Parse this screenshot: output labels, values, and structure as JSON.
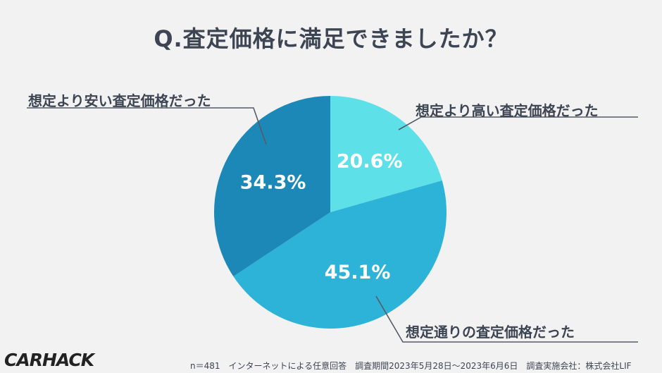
{
  "title": "Q.査定価格に満足できましたか？",
  "chart_data": {
    "type": "pie",
    "title": "Q.査定価格に満足できましたか？",
    "slices": [
      {
        "label": "想定より高い査定価格だった",
        "value": 20.6,
        "display": "20.6%",
        "color": "#5ee0e8"
      },
      {
        "label": "想定通りの査定価格だった",
        "value": 45.1,
        "display": "45.1%",
        "color": "#2db3d8"
      },
      {
        "label": "想定より安い査定価格だった",
        "value": 34.3,
        "display": "34.3%",
        "color": "#1b88b8"
      }
    ],
    "start": "12 o'clock, clockwise",
    "legend": "callout labels"
  },
  "footer": "n＝481　インターネットによる任意回答　調査期間2023年5月28日～2023年6月6日　調査実施会社：株式会社LIF",
  "brand": "CARHACK",
  "colors": {
    "text": "#3d4552",
    "background": "#f2f2f3",
    "leader": "#555b66"
  }
}
